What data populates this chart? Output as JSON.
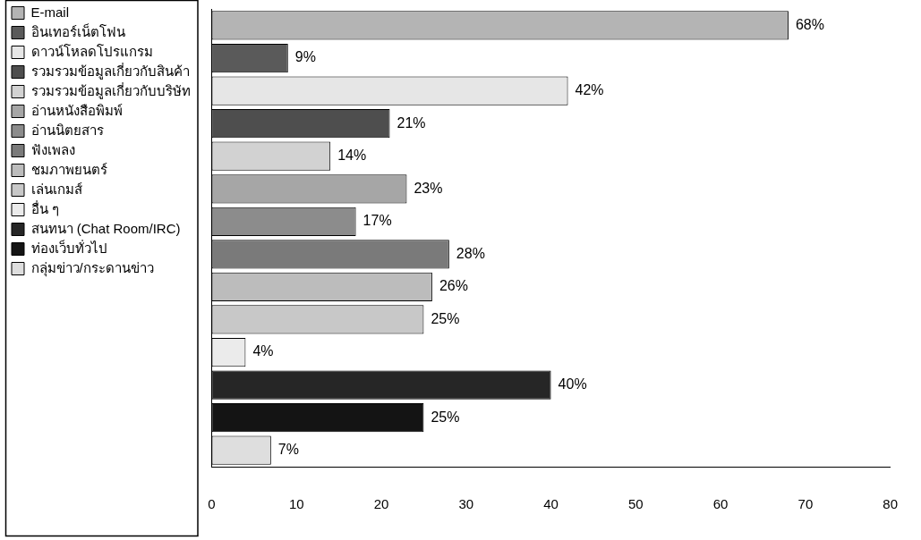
{
  "chart_data": {
    "type": "bar",
    "orientation": "horizontal",
    "categories": [
      null,
      null,
      null,
      null,
      null,
      null,
      null,
      null,
      null,
      null,
      null,
      null,
      null,
      null
    ],
    "xlim": [
      0,
      80
    ],
    "xticks": [
      0,
      10,
      20,
      30,
      40,
      50,
      60,
      70,
      80
    ],
    "grid": false,
    "legend": "left",
    "series": [
      {
        "name": "E-mail",
        "color": "#b4b4b4",
        "values": [
          68,
          null,
          null,
          null,
          null,
          null,
          null,
          null,
          null,
          null,
          null,
          null,
          null,
          null
        ],
        "value_labels": [
          "68%",
          null,
          null,
          null,
          null,
          null,
          null,
          null,
          null,
          null,
          null,
          null,
          null,
          null
        ]
      },
      {
        "name": "อินเทอร์เน็ตโฟน",
        "color": "#5a5a5a",
        "values": [
          null,
          9,
          null,
          null,
          null,
          null,
          null,
          null,
          null,
          null,
          null,
          null,
          null,
          null
        ],
        "value_labels": [
          null,
          "9%",
          null,
          null,
          null,
          null,
          null,
          null,
          null,
          null,
          null,
          null,
          null,
          null
        ]
      },
      {
        "name": "ดาวน์โหลดโปรแกรม",
        "color": "#e6e6e6",
        "values": [
          null,
          null,
          42,
          null,
          null,
          null,
          null,
          null,
          null,
          null,
          null,
          null,
          null,
          null
        ],
        "value_labels": [
          null,
          null,
          "42%",
          null,
          null,
          null,
          null,
          null,
          null,
          null,
          null,
          null,
          null,
          null
        ]
      },
      {
        "name": "รวมรวมข้อมูลเกี่ยวกับสินค้า",
        "color": "#4e4e4e",
        "values": [
          null,
          null,
          null,
          21,
          null,
          null,
          null,
          null,
          null,
          null,
          null,
          null,
          null,
          null
        ],
        "value_labels": [
          null,
          null,
          null,
          "21%",
          null,
          null,
          null,
          null,
          null,
          null,
          null,
          null,
          null,
          null
        ]
      },
      {
        "name": "รวมรวมข้อมูลเกี่ยวกับบริษัท",
        "color": "#d2d2d2",
        "values": [
          null,
          null,
          null,
          null,
          14,
          null,
          null,
          null,
          null,
          null,
          null,
          null,
          null,
          null
        ],
        "value_labels": [
          null,
          null,
          null,
          null,
          "14%",
          null,
          null,
          null,
          null,
          null,
          null,
          null,
          null,
          null
        ]
      },
      {
        "name": "อ่านหนังสือพิมพ์",
        "color": "#a6a6a6",
        "values": [
          null,
          null,
          null,
          null,
          null,
          23,
          null,
          null,
          null,
          null,
          null,
          null,
          null,
          null
        ],
        "value_labels": [
          null,
          null,
          null,
          null,
          null,
          "23%",
          null,
          null,
          null,
          null,
          null,
          null,
          null,
          null
        ]
      },
      {
        "name": "อ่านนิตยสาร",
        "color": "#8c8c8c",
        "values": [
          null,
          null,
          null,
          null,
          null,
          null,
          17,
          null,
          null,
          null,
          null,
          null,
          null,
          null
        ],
        "value_labels": [
          null,
          null,
          null,
          null,
          null,
          null,
          "17%",
          null,
          null,
          null,
          null,
          null,
          null,
          null
        ]
      },
      {
        "name": "ฟังเพลง",
        "color": "#7a7a7a",
        "values": [
          null,
          null,
          null,
          null,
          null,
          null,
          null,
          28,
          null,
          null,
          null,
          null,
          null,
          null
        ],
        "value_labels": [
          null,
          null,
          null,
          null,
          null,
          null,
          null,
          "28%",
          null,
          null,
          null,
          null,
          null,
          null
        ]
      },
      {
        "name": "ชมภาพยนตร์",
        "color": "#bcbcbc",
        "values": [
          null,
          null,
          null,
          null,
          null,
          null,
          null,
          null,
          26,
          null,
          null,
          null,
          null,
          null
        ],
        "value_labels": [
          null,
          null,
          null,
          null,
          null,
          null,
          null,
          null,
          "26%",
          null,
          null,
          null,
          null,
          null
        ]
      },
      {
        "name": "เล่นเกมส์",
        "color": "#c8c8c8",
        "values": [
          null,
          null,
          null,
          null,
          null,
          null,
          null,
          null,
          null,
          25,
          null,
          null,
          null,
          null
        ],
        "value_labels": [
          null,
          null,
          null,
          null,
          null,
          null,
          null,
          null,
          null,
          "25%",
          null,
          null,
          null,
          null
        ]
      },
      {
        "name": "อื่น ๆ",
        "color": "#ebebeb",
        "values": [
          null,
          null,
          null,
          null,
          null,
          null,
          null,
          null,
          null,
          null,
          4,
          null,
          null,
          null
        ],
        "value_labels": [
          null,
          null,
          null,
          null,
          null,
          null,
          null,
          null,
          null,
          null,
          "4%",
          null,
          null,
          null
        ]
      },
      {
        "name": "สนทนา (Chat Room/IRC)",
        "color": "#262626",
        "values": [
          null,
          null,
          null,
          null,
          null,
          null,
          null,
          null,
          null,
          null,
          null,
          40,
          null,
          null
        ],
        "value_labels": [
          null,
          null,
          null,
          null,
          null,
          null,
          null,
          null,
          null,
          null,
          null,
          "40%",
          null,
          null
        ]
      },
      {
        "name": "ท่องเว็บทั่วไป",
        "color": "#141414",
        "values": [
          null,
          null,
          null,
          null,
          null,
          null,
          null,
          null,
          null,
          null,
          null,
          null,
          25,
          null
        ],
        "value_labels": [
          null,
          null,
          null,
          null,
          null,
          null,
          null,
          null,
          null,
          null,
          null,
          null,
          "25%",
          null
        ]
      },
      {
        "name": "กลุ่มข่าว/กระดานข่าว",
        "color": "#dedede",
        "values": [
          null,
          null,
          null,
          null,
          null,
          null,
          null,
          null,
          null,
          null,
          null,
          null,
          null,
          7
        ],
        "value_labels": [
          null,
          null,
          null,
          null,
          null,
          null,
          null,
          null,
          null,
          null,
          null,
          null,
          null,
          "7%"
        ]
      }
    ]
  }
}
